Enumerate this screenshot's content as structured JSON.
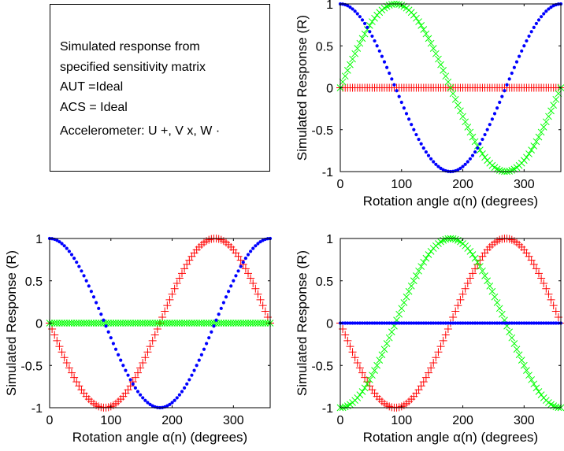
{
  "annotation": {
    "lines": [
      "Simulated response from",
      "specified sensitivity matrix",
      "AUT =Ideal",
      "ACS = Ideal",
      "Accelerometer: U +, V x, W ·"
    ]
  },
  "colors": {
    "U": "#ff0000",
    "V": "#00ff00",
    "W": "#0000ff",
    "axis": "#000000"
  },
  "chart_data": [
    {
      "type": "scatter",
      "panel": "top-right",
      "xlabel": "Rotation angle α(n) (degrees)",
      "ylabel": "Simulated Response (R)",
      "xlim": [
        0,
        360
      ],
      "ylim": [
        -1,
        1
      ],
      "xticks": [
        0,
        100,
        200,
        300
      ],
      "yticks": [
        -1,
        -0.5,
        0,
        0.5,
        1
      ],
      "xtick_labels": [
        "0",
        "100",
        "200",
        "300"
      ],
      "ytick_labels": [
        "-1",
        "-0.5",
        "0",
        "0.5",
        "1"
      ],
      "series": [
        {
          "name": "U",
          "marker": "+",
          "function": "zero",
          "amplitude": 1,
          "step_deg": 4
        },
        {
          "name": "V",
          "marker": "x",
          "function": "sin",
          "amplitude": 1,
          "step_deg": 4
        },
        {
          "name": "W",
          "marker": "dot",
          "function": "cos",
          "amplitude": 1,
          "step_deg": 4
        }
      ]
    },
    {
      "type": "scatter",
      "panel": "bottom-left",
      "xlabel": "Rotation angle α(n) (degrees)",
      "ylabel": "Simulated Response (R)",
      "xlim": [
        0,
        360
      ],
      "ylim": [
        -1,
        1
      ],
      "xticks": [
        0,
        100,
        200,
        300
      ],
      "yticks": [
        -1,
        -0.5,
        0,
        0.5,
        1
      ],
      "xtick_labels": [
        "0",
        "100",
        "200",
        "300"
      ],
      "ytick_labels": [
        "-1",
        "-0.5",
        "0",
        "0.5",
        "1"
      ],
      "series": [
        {
          "name": "U",
          "marker": "+",
          "function": "-sin",
          "amplitude": 1,
          "step_deg": 4
        },
        {
          "name": "V",
          "marker": "x",
          "function": "zero",
          "amplitude": 1,
          "step_deg": 4
        },
        {
          "name": "W",
          "marker": "dot",
          "function": "cos",
          "amplitude": 1,
          "step_deg": 4
        }
      ]
    },
    {
      "type": "scatter",
      "panel": "bottom-right",
      "xlabel": "Rotation angle α(n) (degrees)",
      "ylabel": "Simulated Response (R)",
      "xlim": [
        0,
        360
      ],
      "ylim": [
        -1,
        1
      ],
      "xticks": [
        0,
        100,
        200,
        300
      ],
      "yticks": [
        -1,
        -0.5,
        0,
        0.5,
        1
      ],
      "xtick_labels": [
        "0",
        "100",
        "200",
        "300"
      ],
      "ytick_labels": [
        "-1",
        "-0.5",
        "0",
        "0.5",
        "1"
      ],
      "series": [
        {
          "name": "U",
          "marker": "+",
          "function": "-sin",
          "amplitude": 1,
          "step_deg": 4
        },
        {
          "name": "V",
          "marker": "x",
          "function": "-cos",
          "amplitude": 1,
          "step_deg": 4
        },
        {
          "name": "W",
          "marker": "dot",
          "function": "zero",
          "amplitude": 1,
          "step_deg": 4
        }
      ]
    }
  ]
}
